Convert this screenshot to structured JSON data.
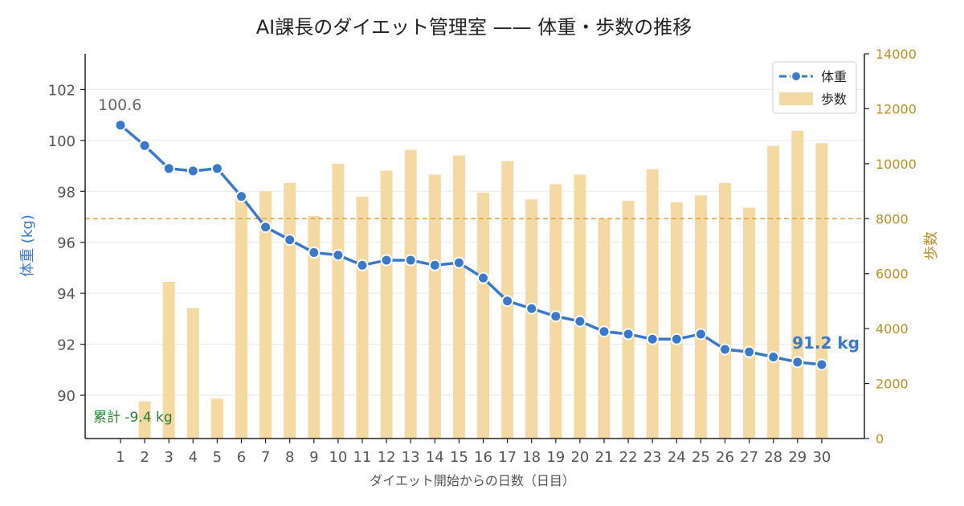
{
  "chart_data": {
    "type": "bar+line",
    "title": "AI課長のダイエット管理室 —— 体重・歩数の推移",
    "xlabel": "ダイエット開始からの日数（日目）",
    "ylabel_left": "体重 (kg)",
    "ylabel_right": "歩数",
    "x": [
      1,
      2,
      3,
      4,
      5,
      6,
      7,
      8,
      9,
      10,
      11,
      12,
      13,
      14,
      15,
      16,
      17,
      18,
      19,
      20,
      21,
      22,
      23,
      24,
      25,
      26,
      27,
      28,
      29,
      30
    ],
    "series": [
      {
        "name": "体重",
        "type": "line",
        "axis": "left",
        "color": "#3a78c9",
        "values": [
          100.6,
          99.8,
          98.9,
          98.8,
          98.9,
          97.8,
          96.6,
          96.1,
          95.6,
          95.5,
          95.1,
          95.3,
          95.3,
          95.1,
          95.2,
          94.6,
          93.7,
          93.4,
          93.1,
          92.9,
          92.5,
          92.4,
          92.2,
          92.2,
          92.4,
          91.8,
          91.7,
          91.5,
          91.3,
          91.2
        ]
      },
      {
        "name": "歩数",
        "type": "bar",
        "axis": "right",
        "color": "#f5d9a3",
        "values": [
          null,
          1350,
          5700,
          4750,
          1450,
          8800,
          9000,
          9300,
          8100,
          10000,
          8800,
          9750,
          10500,
          9600,
          10300,
          8950,
          10100,
          8700,
          9250,
          9600,
          8000,
          8650,
          9800,
          8600,
          8850,
          9300,
          8400,
          10650,
          11200,
          10750
        ]
      }
    ],
    "ylim_left": [
      88.3,
      103.4
    ],
    "ylim_right": [
      0,
      14000
    ],
    "yticks_left": [
      90,
      92,
      94,
      96,
      98,
      100,
      102
    ],
    "yticks_right": [
      0,
      2000,
      4000,
      6000,
      8000,
      10000,
      12000,
      14000
    ],
    "reference_line": {
      "axis": "right",
      "value": 8000,
      "color": "#d9a441",
      "style": "dashed"
    },
    "annotations": {
      "start_label": "100.6",
      "end_label": "91.2 kg",
      "total_label": "累計 -9.4 kg"
    },
    "colors": {
      "weight": "#3a78c9",
      "steps": "#f5d9a3",
      "right_axis": "#b8912e",
      "total": "#2e7d32",
      "grid": "#e8e8e8"
    },
    "legend": {
      "placement": "top-right",
      "entries": [
        "体重",
        "歩数"
      ]
    },
    "grid": true
  }
}
